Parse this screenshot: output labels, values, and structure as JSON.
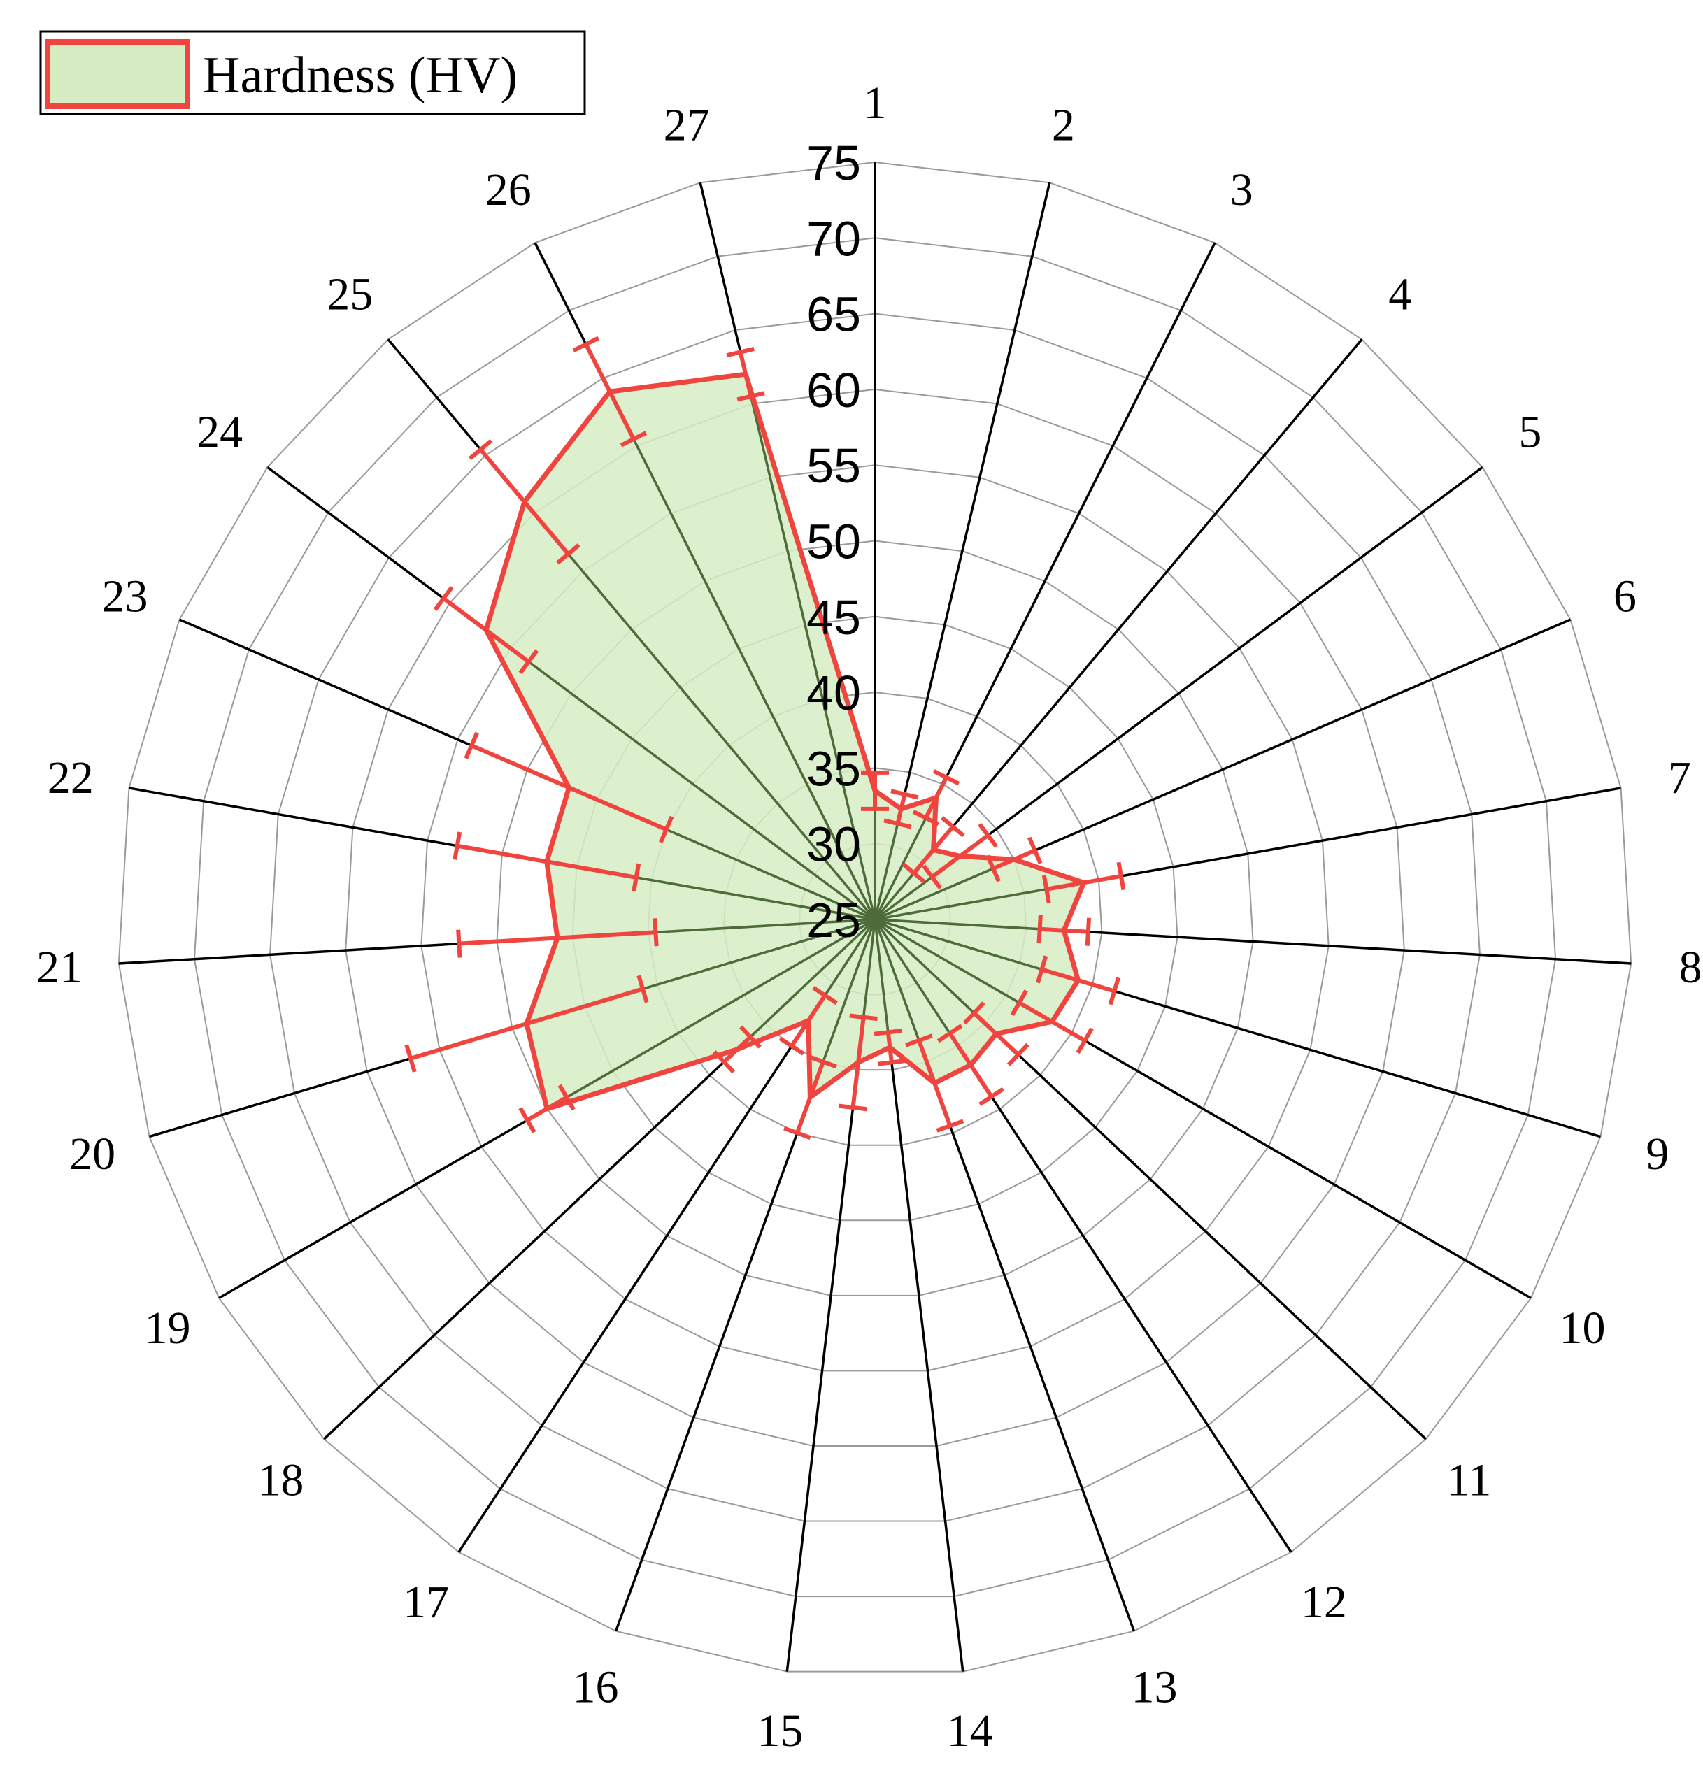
{
  "chart_data": {
    "type": "radar",
    "categories": [
      "1",
      "2",
      "3",
      "4",
      "5",
      "6",
      "7",
      "8",
      "9",
      "10",
      "11",
      "12",
      "13",
      "14",
      "15",
      "16",
      "17",
      "18",
      "19",
      "20",
      "21",
      "22",
      "23",
      "24",
      "25",
      "26",
      "27"
    ],
    "radial_ticks": [
      "25",
      "30",
      "35",
      "40",
      "45",
      "50",
      "55",
      "60",
      "65",
      "70",
      "75"
    ],
    "rlim": [
      25,
      75
    ],
    "series": [
      {
        "name": "Hardness (HV)",
        "values": [
          33.5,
          32.5,
          34,
          31,
          32,
          35,
          39,
          37.5,
          39,
          38.5,
          36,
          36.5,
          36.5,
          33.5,
          34.5,
          37.5,
          33,
          37.5,
          50,
          49,
          46,
          47,
          47,
          57,
          61,
          64,
          62
        ],
        "errors": [
          1.2,
          1,
          1.5,
          2,
          2.3,
          1.5,
          2.5,
          1.6,
          2.5,
          2.5,
          2,
          2.5,
          3,
          1,
          3,
          2.5,
          2,
          1.2,
          1.5,
          8,
          6.5,
          6,
          7,
          3.5,
          4.5,
          3.5,
          1.5
        ]
      }
    ],
    "colors": {
      "fill": "#d6edc4",
      "line": "#f0443e",
      "grid": "#9a9a9a",
      "spoke": "#000000"
    },
    "legend": {
      "position": "top-left"
    },
    "grid": true
  }
}
